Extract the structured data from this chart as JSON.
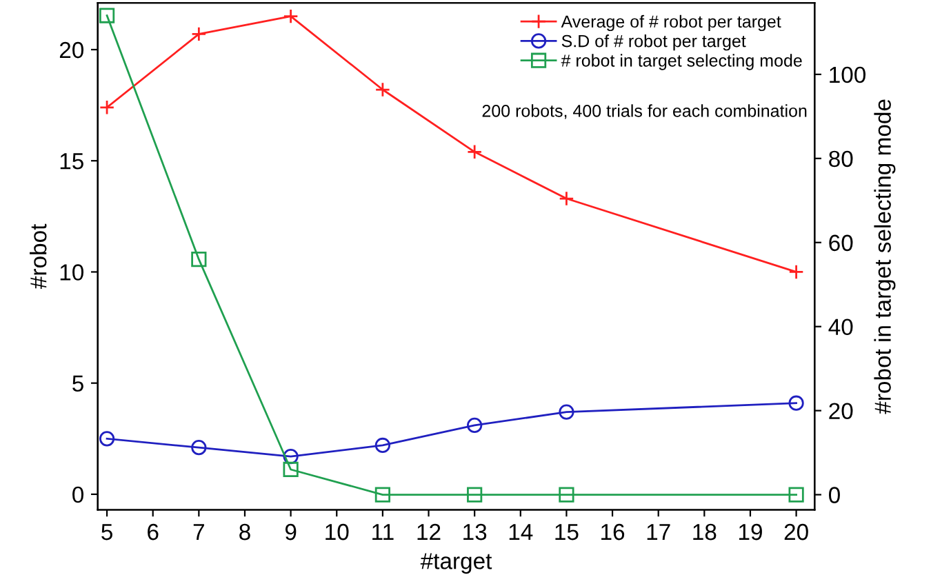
{
  "chart_data": {
    "type": "line",
    "xlabel": "#target",
    "ylabel": "#robot",
    "y2label": "#robot in target selecting mode",
    "x": [
      5,
      7,
      9,
      11,
      13,
      15,
      20
    ],
    "series": [
      {
        "name": "Average of # robot per target",
        "color": "#ff2020",
        "marker": "cross",
        "values": [
          17.4,
          20.7,
          21.5,
          18.2,
          15.4,
          13.3,
          10.0
        ]
      },
      {
        "name": "S.D of # robot per target",
        "color": "#2020c0",
        "marker": "circle",
        "values": [
          2.5,
          2.1,
          1.7,
          2.2,
          3.1,
          3.7,
          4.1
        ]
      },
      {
        "name": "# robot in target selecting mode",
        "color": "#20a050",
        "marker": "square",
        "axis": "y2",
        "values": [
          114,
          56,
          6,
          0,
          0,
          0,
          0
        ]
      }
    ],
    "annotations": [
      "200 robots, 400 trials for each combination"
    ],
    "xlim": [
      4.8,
      20.4
    ],
    "xticks": [
      5,
      6,
      7,
      8,
      9,
      10,
      11,
      12,
      13,
      14,
      15,
      16,
      17,
      18,
      19,
      20
    ],
    "ylim": [
      -0.7,
      22.1
    ],
    "yticks": [
      0,
      5,
      10,
      15,
      20
    ],
    "y2lim": [
      -3.6,
      117
    ],
    "y2ticks": [
      0,
      20,
      40,
      60,
      80,
      100
    ],
    "legend": "top right",
    "grid": false
  }
}
